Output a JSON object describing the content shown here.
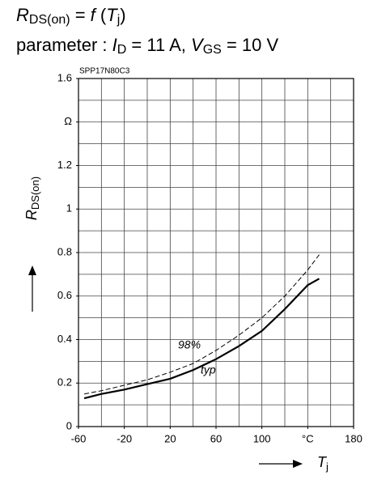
{
  "chart_data": {
    "type": "line",
    "title_parts": [
      "R",
      "DS(on)",
      " = ",
      "f",
      " (",
      "T",
      "j",
      ")"
    ],
    "subtitle_parts": [
      "parameter : ",
      "I",
      "D",
      " = 11 A, ",
      "V",
      "GS",
      " = 10 V"
    ],
    "part_number": "SPP17N80C3",
    "y_label_parts": [
      "R",
      "DS(on)"
    ],
    "x_label_parts": [
      "T",
      "j"
    ],
    "x": [
      -55,
      -40,
      -20,
      0,
      20,
      40,
      60,
      80,
      100,
      120,
      140,
      150
    ],
    "series": [
      {
        "name": "typ",
        "color": "#000000",
        "dashed": false,
        "values": [
          0.13,
          0.15,
          0.17,
          0.195,
          0.22,
          0.26,
          0.31,
          0.37,
          0.44,
          0.54,
          0.65,
          0.68
        ]
      },
      {
        "name": "98%",
        "color": "#000000",
        "dashed": true,
        "values": [
          0.15,
          0.165,
          0.19,
          0.215,
          0.25,
          0.29,
          0.35,
          0.42,
          0.5,
          0.6,
          0.72,
          0.79
        ]
      }
    ],
    "xlim": [
      -60,
      180
    ],
    "ylim": [
      0,
      1.6
    ],
    "xticks": [
      -60,
      -20,
      20,
      60,
      100,
      {
        "value": 140,
        "label": "°C"
      },
      180
    ],
    "yticks": [
      0,
      0.2,
      0.4,
      0.6,
      0.8,
      1,
      1.2,
      {
        "value": 1.4,
        "label": "Ω"
      },
      1.6
    ],
    "x_gridlines": [
      -40,
      -20,
      0,
      20,
      40,
      60,
      80,
      100,
      120,
      140,
      160
    ],
    "y_gridlines": [
      0.1,
      0.2,
      0.3,
      0.4,
      0.5,
      0.6,
      0.7,
      0.8,
      0.9,
      1,
      1.1,
      1.2,
      1.3,
      1.4,
      1.5
    ],
    "grid": true
  }
}
